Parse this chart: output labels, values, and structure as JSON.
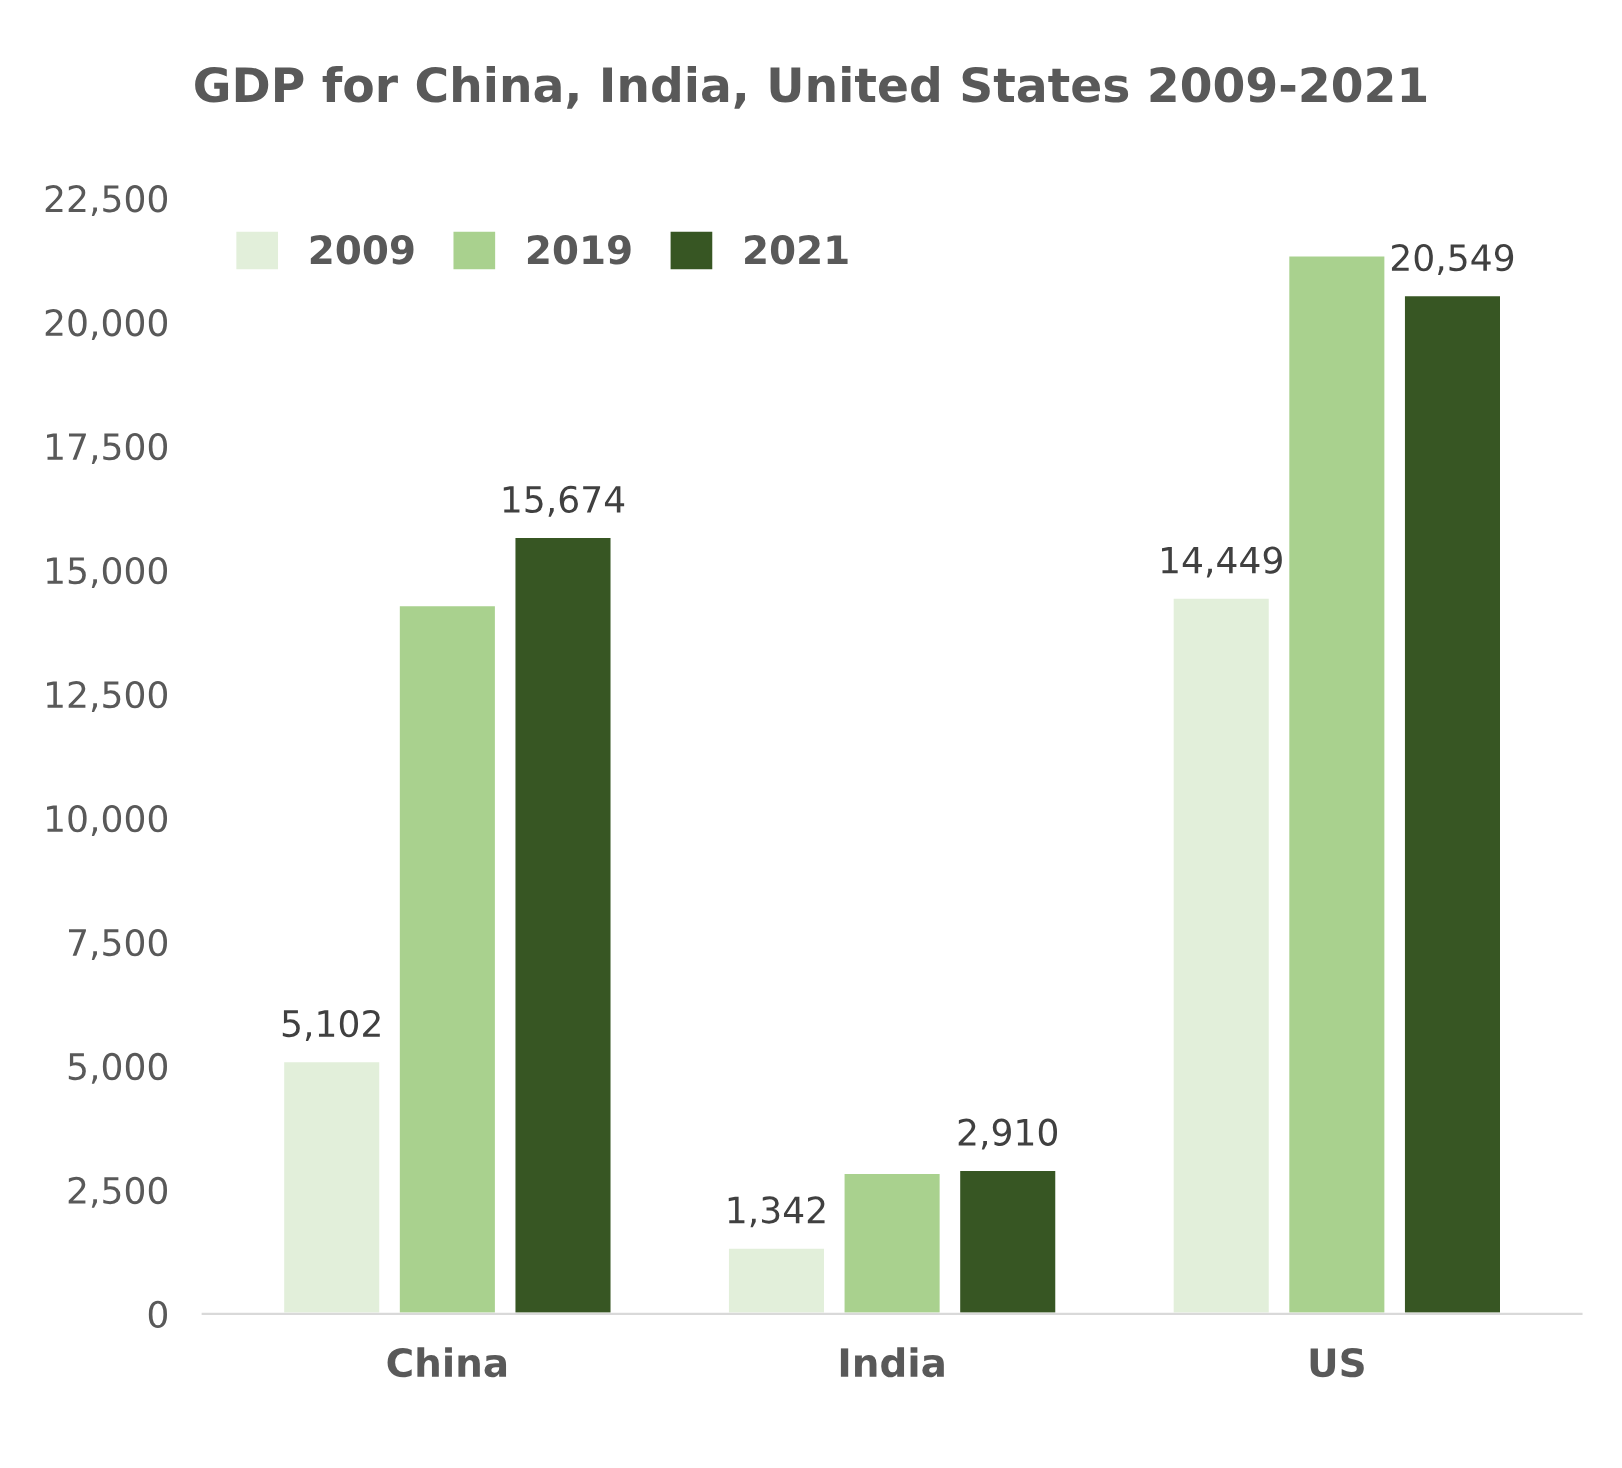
{
  "chart_data": {
    "type": "bar",
    "title": "GDP for China, India, United States 2009-2021",
    "categories": [
      "China",
      "India",
      "US"
    ],
    "series": [
      {
        "name": "2009",
        "color": "#e2efda",
        "values": [
          5102,
          1342,
          14449
        ],
        "value_labels": [
          "5,102",
          "1,342",
          "14,449"
        ]
      },
      {
        "name": "2019",
        "color": "#a9d18e",
        "values": [
          14300,
          2850,
          21350
        ]
      },
      {
        "name": "2021",
        "color": "#375623",
        "values": [
          15674,
          2910,
          20549
        ],
        "value_labels": [
          "15,674",
          "2,910",
          "20,549"
        ]
      }
    ],
    "ylim": [
      0,
      22500
    ],
    "yticks": [
      {
        "value": 0,
        "label": "0"
      },
      {
        "value": 2500,
        "label": "2,500"
      },
      {
        "value": 5000,
        "label": "5,000"
      },
      {
        "value": 7500,
        "label": "7,500"
      },
      {
        "value": 10000,
        "label": "10,000"
      },
      {
        "value": 12500,
        "label": "12,500"
      },
      {
        "value": 15000,
        "label": "15,000"
      },
      {
        "value": 17500,
        "label": "17,500"
      },
      {
        "value": 20000,
        "label": "20,000"
      },
      {
        "value": 22500,
        "label": "22,500"
      }
    ],
    "grid": false,
    "legend": "top left"
  }
}
